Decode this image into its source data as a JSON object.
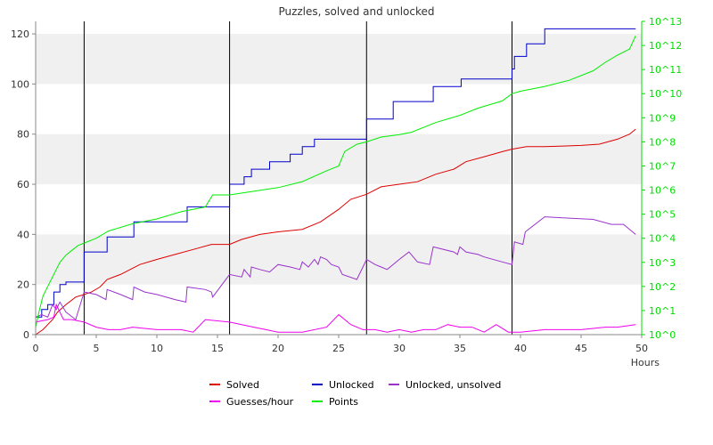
{
  "chart_data": {
    "type": "line",
    "title": "Puzzles, solved and unlocked",
    "xlabel": "Hours",
    "xlim": [
      0,
      50
    ],
    "ylim": [
      0,
      125
    ],
    "y2_scale": "log10",
    "y2_lim_exp": [
      0,
      13
    ],
    "xticks": [
      "0",
      "5",
      "10",
      "15",
      "20",
      "25",
      "30",
      "35",
      "40",
      "45",
      "50"
    ],
    "yticks": [
      "0",
      "20",
      "40",
      "60",
      "80",
      "100",
      "120"
    ],
    "y2ticks": [
      "10^0",
      "10^1",
      "10^2",
      "10^3",
      "10^4",
      "10^5",
      "10^6",
      "10^7",
      "10^8",
      "10^9",
      "10^10",
      "10^11",
      "10^12",
      "10^13"
    ],
    "grid": "alternating horizontal bands",
    "legend_position": "bottom",
    "vlines": [
      4.0,
      16.0,
      27.3,
      39.3
    ],
    "series": [
      {
        "name": "Solved",
        "color": "#dd0000",
        "axis": "left",
        "step": false,
        "points": [
          [
            0,
            0
          ],
          [
            0.6,
            2
          ],
          [
            1.0,
            4
          ],
          [
            1.4,
            6
          ],
          [
            1.8,
            9
          ],
          [
            2.5,
            12
          ],
          [
            3.3,
            15
          ],
          [
            4.0,
            16
          ],
          [
            4.6,
            17
          ],
          [
            5.3,
            19
          ],
          [
            5.9,
            22
          ],
          [
            7.0,
            24
          ],
          [
            7.8,
            26
          ],
          [
            8.6,
            28
          ],
          [
            10.0,
            30
          ],
          [
            11.5,
            32
          ],
          [
            13.0,
            34
          ],
          [
            14.5,
            36
          ],
          [
            16.0,
            36
          ],
          [
            17.0,
            38
          ],
          [
            18.5,
            40
          ],
          [
            20.0,
            41
          ],
          [
            22.0,
            42
          ],
          [
            23.5,
            45
          ],
          [
            25.0,
            50
          ],
          [
            26.0,
            54
          ],
          [
            27.3,
            56
          ],
          [
            28.5,
            59
          ],
          [
            30.0,
            60
          ],
          [
            31.5,
            61
          ],
          [
            33.0,
            64
          ],
          [
            34.5,
            66
          ],
          [
            35.5,
            69
          ],
          [
            37.0,
            71
          ],
          [
            38.5,
            73
          ],
          [
            39.3,
            74
          ],
          [
            40.5,
            75
          ],
          [
            42.0,
            75
          ],
          [
            45.0,
            75.5
          ],
          [
            46.5,
            76
          ],
          [
            48.0,
            78
          ],
          [
            49.0,
            80
          ],
          [
            49.5,
            82
          ]
        ]
      },
      {
        "name": "Unlocked",
        "color": "#0000cc",
        "axis": "left",
        "step": true,
        "points": [
          [
            0,
            7
          ],
          [
            0.5,
            10
          ],
          [
            1.0,
            12
          ],
          [
            1.5,
            17
          ],
          [
            2.0,
            20
          ],
          [
            2.5,
            21
          ],
          [
            4.0,
            33
          ],
          [
            5.9,
            39
          ],
          [
            8.1,
            45
          ],
          [
            12.5,
            51
          ],
          [
            16.0,
            60
          ],
          [
            17.2,
            63
          ],
          [
            17.8,
            66
          ],
          [
            19.3,
            69
          ],
          [
            21.0,
            72
          ],
          [
            22.0,
            75
          ],
          [
            23.0,
            78
          ],
          [
            27.3,
            86
          ],
          [
            29.5,
            93
          ],
          [
            32.8,
            99
          ],
          [
            35.1,
            102
          ],
          [
            39.3,
            106
          ],
          [
            39.5,
            111
          ],
          [
            40.5,
            116
          ],
          [
            42.0,
            122
          ],
          [
            49.5,
            122
          ]
        ]
      },
      {
        "name": "Unlocked, unsolved",
        "color": "#9933cc",
        "axis": "left",
        "step": false,
        "points": [
          [
            0,
            7
          ],
          [
            0.5,
            8
          ],
          [
            1.0,
            7
          ],
          [
            1.4,
            12
          ],
          [
            1.7,
            10
          ],
          [
            2.0,
            13
          ],
          [
            2.5,
            9
          ],
          [
            3.3,
            6
          ],
          [
            4.0,
            17
          ],
          [
            5.0,
            16
          ],
          [
            5.8,
            14
          ],
          [
            5.9,
            18
          ],
          [
            7.0,
            16
          ],
          [
            8.0,
            14
          ],
          [
            8.1,
            19
          ],
          [
            9.0,
            17
          ],
          [
            10.0,
            16
          ],
          [
            11.5,
            14
          ],
          [
            12.4,
            13
          ],
          [
            12.5,
            19
          ],
          [
            14.0,
            18
          ],
          [
            14.5,
            17
          ],
          [
            14.6,
            15
          ],
          [
            16.0,
            24
          ],
          [
            17.0,
            23
          ],
          [
            17.2,
            26
          ],
          [
            17.7,
            23
          ],
          [
            17.8,
            27
          ],
          [
            18.5,
            26
          ],
          [
            19.3,
            25
          ],
          [
            20.0,
            28
          ],
          [
            21.0,
            27
          ],
          [
            21.8,
            26
          ],
          [
            22.0,
            29
          ],
          [
            22.5,
            27
          ],
          [
            23.0,
            30
          ],
          [
            23.3,
            28
          ],
          [
            23.5,
            31
          ],
          [
            24.0,
            30
          ],
          [
            24.4,
            28
          ],
          [
            25.0,
            27
          ],
          [
            25.3,
            24
          ],
          [
            26.5,
            22
          ],
          [
            27.3,
            30
          ],
          [
            28.0,
            28
          ],
          [
            28.5,
            27
          ],
          [
            29.0,
            26
          ],
          [
            30.0,
            30
          ],
          [
            30.8,
            33
          ],
          [
            31.5,
            29
          ],
          [
            32.5,
            28
          ],
          [
            32.8,
            35
          ],
          [
            34.5,
            33
          ],
          [
            34.8,
            32
          ],
          [
            35.0,
            35
          ],
          [
            35.5,
            33
          ],
          [
            36.5,
            32
          ],
          [
            37.0,
            31
          ],
          [
            38.5,
            29
          ],
          [
            39.3,
            28
          ],
          [
            39.5,
            37
          ],
          [
            40.2,
            36
          ],
          [
            40.4,
            41
          ],
          [
            42.0,
            47
          ],
          [
            44.0,
            46.5
          ],
          [
            46.0,
            46
          ],
          [
            47.5,
            44
          ],
          [
            48.5,
            44
          ],
          [
            49.0,
            42
          ],
          [
            49.5,
            40
          ]
        ]
      },
      {
        "name": "Guesses/hour",
        "color": "#ee00ee",
        "axis": "left",
        "step": false,
        "points": [
          [
            0,
            5
          ],
          [
            1.0,
            6
          ],
          [
            1.5,
            7
          ],
          [
            1.7,
            12
          ],
          [
            2.0,
            9
          ],
          [
            2.3,
            6
          ],
          [
            3.0,
            6
          ],
          [
            4.0,
            5
          ],
          [
            5.0,
            3
          ],
          [
            6.0,
            2
          ],
          [
            7.0,
            2
          ],
          [
            8.0,
            3
          ],
          [
            10.0,
            2
          ],
          [
            12.0,
            2
          ],
          [
            13.0,
            1
          ],
          [
            14.0,
            6
          ],
          [
            16.0,
            5
          ],
          [
            17.0,
            4
          ],
          [
            18.0,
            3
          ],
          [
            19.0,
            2
          ],
          [
            20.0,
            1
          ],
          [
            22.0,
            1
          ],
          [
            24.0,
            3
          ],
          [
            25.0,
            8
          ],
          [
            26.0,
            4
          ],
          [
            27.0,
            2
          ],
          [
            28.0,
            2
          ],
          [
            29.0,
            1
          ],
          [
            30.0,
            2
          ],
          [
            31.0,
            1
          ],
          [
            32.0,
            2
          ],
          [
            33.0,
            2
          ],
          [
            34.0,
            4
          ],
          [
            35.0,
            3
          ],
          [
            36.0,
            3
          ],
          [
            37.0,
            1
          ],
          [
            38.0,
            4
          ],
          [
            39.0,
            1
          ],
          [
            40.0,
            1
          ],
          [
            42.0,
            2
          ],
          [
            45.0,
            2
          ],
          [
            47.0,
            3
          ],
          [
            48.0,
            3
          ],
          [
            49.5,
            4
          ]
        ]
      },
      {
        "name": "Points",
        "color": "#00ee00",
        "axis": "right",
        "step": false,
        "points": [
          [
            0,
            0.3
          ],
          [
            0.3,
            1.0
          ],
          [
            0.6,
            1.6
          ],
          [
            1.0,
            2.0
          ],
          [
            1.5,
            2.5
          ],
          [
            2.0,
            3.0
          ],
          [
            2.5,
            3.3
          ],
          [
            3.0,
            3.5
          ],
          [
            3.5,
            3.7
          ],
          [
            4.0,
            3.8
          ],
          [
            5.0,
            4.0
          ],
          [
            6.0,
            4.3
          ],
          [
            8.0,
            4.6
          ],
          [
            10.0,
            4.8
          ],
          [
            12.0,
            5.1
          ],
          [
            14.0,
            5.3
          ],
          [
            14.6,
            5.8
          ],
          [
            16.0,
            5.8
          ],
          [
            18.0,
            5.95
          ],
          [
            20.0,
            6.1
          ],
          [
            22.0,
            6.35
          ],
          [
            24.0,
            6.8
          ],
          [
            25.0,
            7.0
          ],
          [
            25.5,
            7.6
          ],
          [
            26.5,
            7.9
          ],
          [
            27.3,
            8.0
          ],
          [
            28.5,
            8.2
          ],
          [
            30.0,
            8.3
          ],
          [
            31.0,
            8.4
          ],
          [
            33.0,
            8.8
          ],
          [
            35.0,
            9.1
          ],
          [
            36.5,
            9.4
          ],
          [
            38.5,
            9.7
          ],
          [
            39.3,
            10.0
          ],
          [
            40.0,
            10.1
          ],
          [
            42.0,
            10.3
          ],
          [
            44.0,
            10.55
          ],
          [
            46.0,
            10.95
          ],
          [
            47.0,
            11.3
          ],
          [
            48.0,
            11.6
          ],
          [
            49.0,
            11.85
          ],
          [
            49.5,
            12.4
          ]
        ]
      }
    ]
  }
}
